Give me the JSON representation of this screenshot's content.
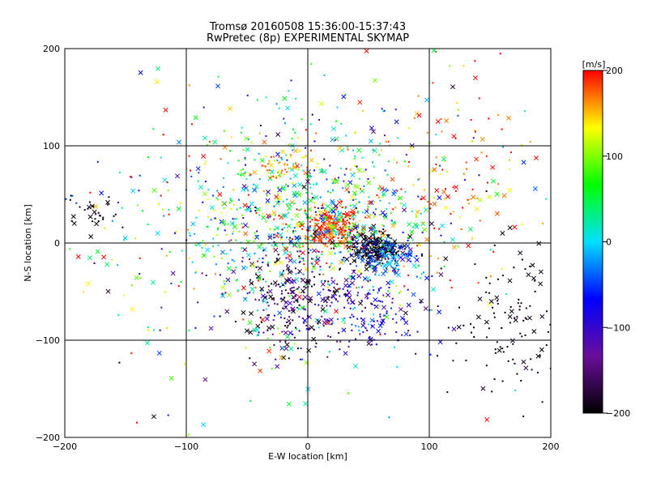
{
  "chart_data": {
    "type": "scatter",
    "title": "Tromsø 20160508 15:36:00-15:37:43",
    "subtitle": "RwPretec (8p) EXPERIMENTAL SKYMAP",
    "xlabel": "E-W location [km]",
    "ylabel": "N-S location [km]",
    "xlim": [
      -200,
      200
    ],
    "ylim": [
      -200,
      200
    ],
    "x_ticks": [
      -200,
      -100,
      0,
      100,
      200
    ],
    "y_ticks": [
      -200,
      -100,
      0,
      100,
      200
    ],
    "grid": true,
    "colorbar": {
      "label": "[m/s]",
      "range": [
        -200,
        200
      ],
      "ticks": [
        200,
        100,
        0,
        -100,
        -200
      ],
      "stops": [
        "#000000",
        "#6a0d9a",
        "#0000ff",
        "#00e0ff",
        "#00ff00",
        "#ffff00",
        "#ff0000"
      ]
    },
    "markers": [
      "cross",
      "dot"
    ],
    "clusters": [
      {
        "center": [
          20,
          15
        ],
        "spread": [
          12,
          10
        ],
        "count": 260,
        "vel": 185,
        "vspread": 25
      },
      {
        "center": [
          55,
          -5
        ],
        "spread": [
          12,
          8
        ],
        "count": 220,
        "vel": -195,
        "vspread": 10
      },
      {
        "center": [
          65,
          -15
        ],
        "spread": [
          18,
          12
        ],
        "count": 140,
        "vel": -40,
        "vspread": 40
      },
      {
        "center": [
          0,
          30
        ],
        "spread": [
          55,
          45
        ],
        "count": 650,
        "vel": 40,
        "vspread": 90
      },
      {
        "center": [
          -10,
          -60
        ],
        "spread": [
          25,
          30
        ],
        "count": 260,
        "vel": -160,
        "vspread": 40
      },
      {
        "center": [
          50,
          -70
        ],
        "spread": [
          25,
          20
        ],
        "count": 150,
        "vel": -90,
        "vspread": 40
      },
      {
        "center": [
          -20,
          80
        ],
        "spread": [
          10,
          8
        ],
        "count": 50,
        "vel": 165,
        "vspread": 20
      },
      {
        "center": [
          120,
          70
        ],
        "spread": [
          40,
          50
        ],
        "count": 130,
        "vel": 170,
        "vspread": 40
      },
      {
        "center": [
          170,
          -80
        ],
        "spread": [
          25,
          40
        ],
        "count": 120,
        "vel": -195,
        "vspread": 10
      },
      {
        "center": [
          -180,
          30
        ],
        "spread": [
          12,
          12
        ],
        "count": 30,
        "vel": -195,
        "vspread": 10
      },
      {
        "center": [
          -40,
          0
        ],
        "spread": [
          60,
          60
        ],
        "count": 200,
        "vel": 60,
        "vspread": 100
      },
      {
        "center": [
          0,
          0
        ],
        "spread": [
          110,
          100
        ],
        "count": 220,
        "vel": 20,
        "vspread": 150
      }
    ]
  }
}
